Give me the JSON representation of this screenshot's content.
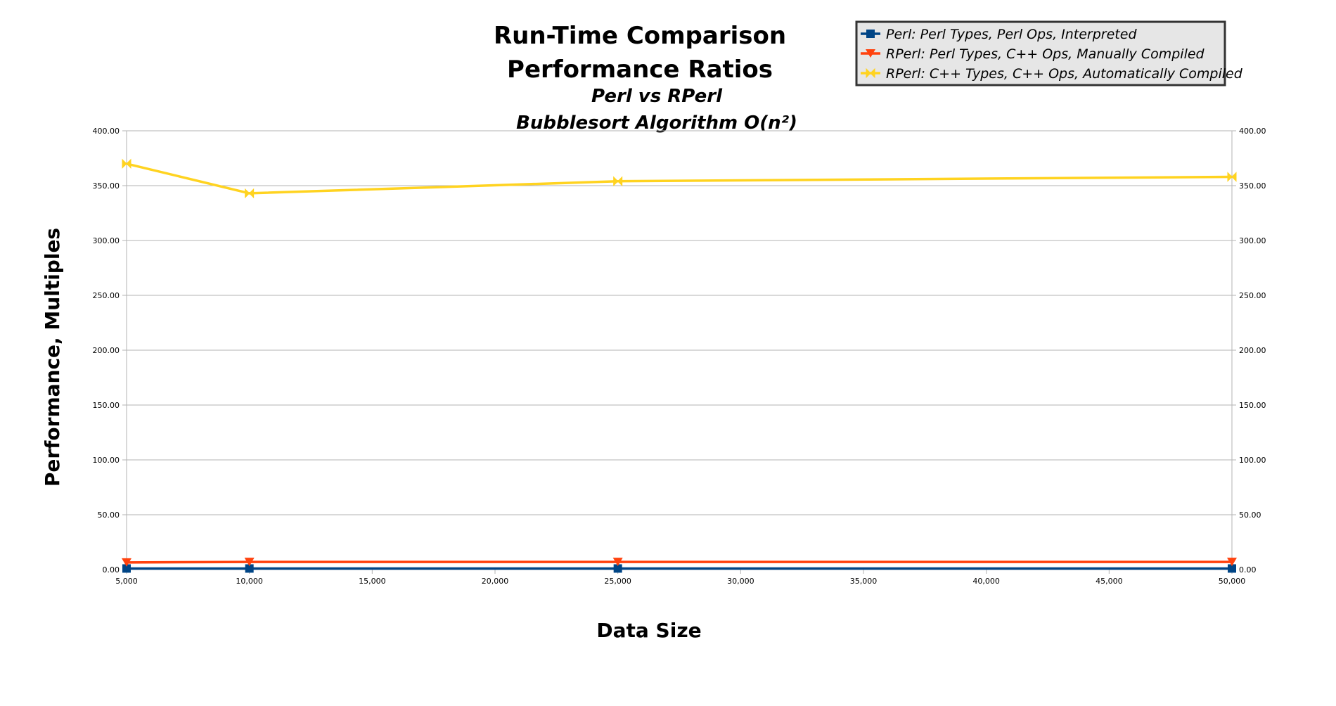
{
  "chart_data": {
    "type": "line",
    "title": "Run-Time Comparison",
    "title_line2": "Performance Ratios",
    "subtitle": "Perl vs RPerl",
    "subtitle_line2": "Bubblesort Algorithm O(n²)",
    "xlabel": "Data Size",
    "ylabel": "Performance, Multiples",
    "xlim": [
      5000,
      50000
    ],
    "ylim": [
      0,
      400
    ],
    "x_ticks": [
      5000,
      10000,
      15000,
      20000,
      25000,
      30000,
      35000,
      40000,
      45000,
      50000
    ],
    "x_tick_labels": [
      "5,000",
      "10,000",
      "15,000",
      "20,000",
      "25,000",
      "30,000",
      "35,000",
      "40,000",
      "45,000",
      "50,000"
    ],
    "y_ticks": [
      0,
      50,
      100,
      150,
      200,
      250,
      300,
      350,
      400
    ],
    "y_tick_labels": [
      "0.00",
      "50.00",
      "100.00",
      "150.00",
      "200.00",
      "250.00",
      "300.00",
      "350.00",
      "400.00"
    ],
    "secondary_y_axis": true,
    "grid": true,
    "legend_position": "top-right",
    "series": [
      {
        "name": "Perl: Perl Types, Perl Ops, Interpreted",
        "color": "#004586",
        "marker": "square",
        "x": [
          5000,
          10000,
          25000,
          50000
        ],
        "values": [
          1.0,
          1.0,
          1.0,
          1.0
        ]
      },
      {
        "name": "RPerl: Perl Types, C++ Ops, Manually Compiled",
        "color": "#ff420e",
        "marker": "triangle-down",
        "x": [
          5000,
          10000,
          25000,
          50000
        ],
        "values": [
          6.5,
          7.0,
          7.0,
          7.0
        ]
      },
      {
        "name": "RPerl: C++ Types, C++ Ops, Automatically Compiled",
        "color": "#ffd320",
        "marker": "bowtie",
        "x": [
          5000,
          10000,
          25000,
          50000
        ],
        "values": [
          370.0,
          343.0,
          354.0,
          358.0
        ]
      }
    ]
  }
}
